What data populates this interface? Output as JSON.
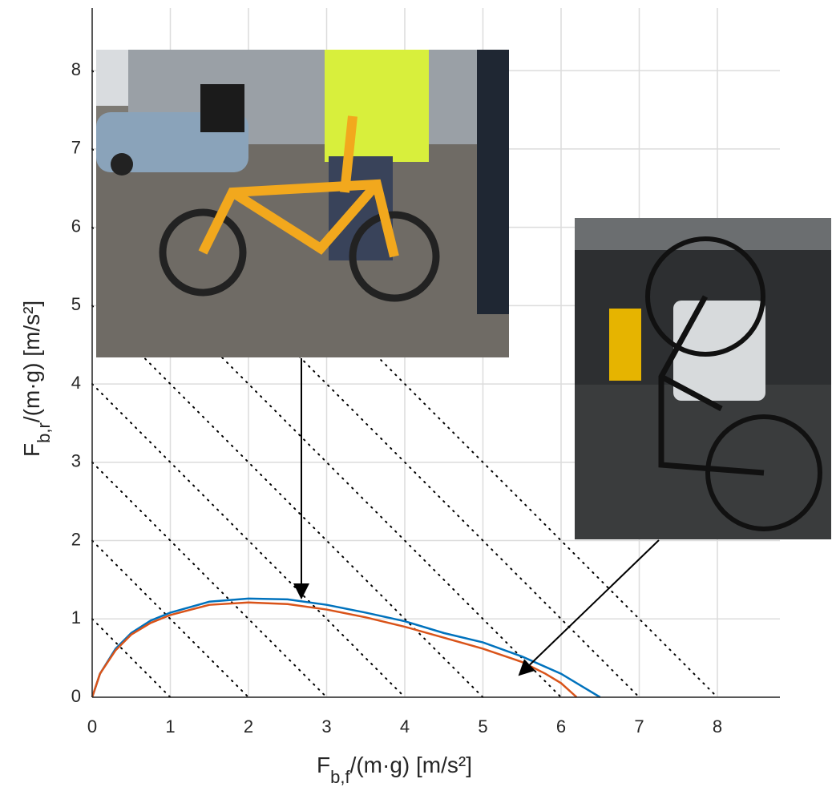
{
  "chart_data": {
    "type": "line",
    "xlabel": {
      "main": "F",
      "sub": "b,f",
      "rest": "/(m·g) [m/s²]"
    },
    "ylabel": {
      "main": "F",
      "sub": "b,r",
      "rest": "/(m·g) [m/s²]"
    },
    "xlim": [
      0,
      8.8
    ],
    "ylim": [
      0,
      8.8
    ],
    "xticks": [
      0,
      1,
      2,
      3,
      4,
      5,
      6,
      7,
      8
    ],
    "yticks": [
      0,
      1,
      2,
      3,
      4,
      5,
      6,
      7,
      8
    ],
    "grid": true,
    "iso_lines": [
      1,
      2,
      3,
      4,
      5,
      6,
      7,
      8
    ],
    "series": [
      {
        "color": "#0072bd",
        "x": [
          0,
          0.1,
          0.3,
          0.5,
          0.75,
          1,
          1.5,
          2,
          2.5,
          3,
          3.5,
          4,
          4.5,
          5,
          5.5,
          6,
          6.3,
          6.5
        ],
        "values": [
          0,
          0.3,
          0.62,
          0.82,
          0.98,
          1.08,
          1.22,
          1.26,
          1.25,
          1.18,
          1.08,
          0.97,
          0.82,
          0.7,
          0.52,
          0.3,
          0.12,
          0
        ]
      },
      {
        "color": "#d95319",
        "x": [
          0,
          0.1,
          0.3,
          0.5,
          0.75,
          1,
          1.5,
          2,
          2.5,
          3,
          3.5,
          4,
          4.5,
          5,
          5.5,
          5.8,
          6,
          6.2
        ],
        "values": [
          0,
          0.3,
          0.6,
          0.8,
          0.95,
          1.05,
          1.18,
          1.21,
          1.19,
          1.12,
          1.02,
          0.9,
          0.76,
          0.62,
          0.45,
          0.3,
          0.18,
          0
        ]
      }
    ]
  }
}
